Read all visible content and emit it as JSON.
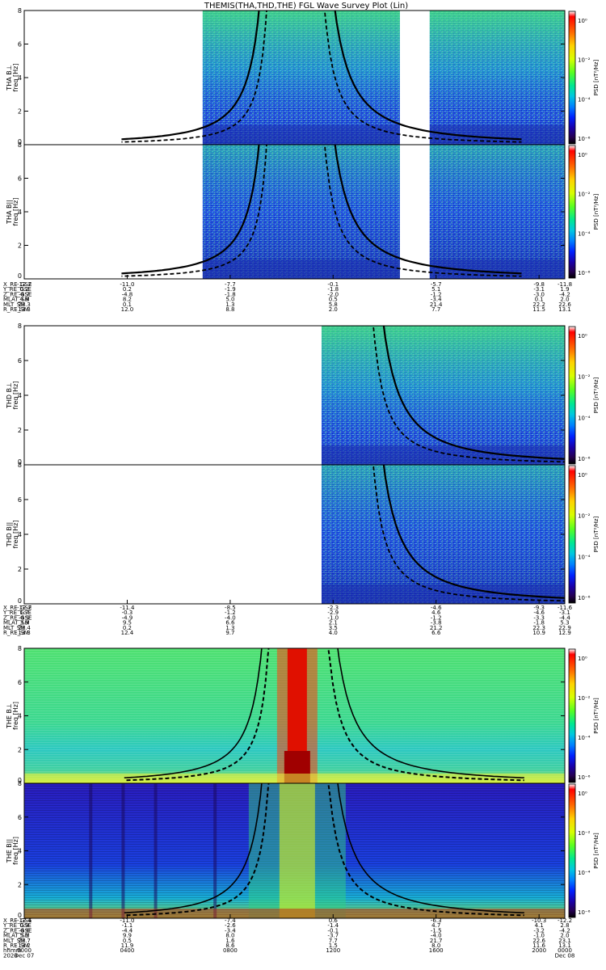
{
  "title": "THEMIS(THA,THD,THE) FGL Wave Survey Plot (Lin)",
  "colorbar": {
    "label": "PSD [nT²/Hz]",
    "ticks": [
      "10⁰",
      "10⁻²",
      "10⁻⁴",
      "10⁻⁶"
    ],
    "colors": [
      "#ffffff",
      "#ff0000",
      "#ff6a00",
      "#ffd200",
      "#d8ff00",
      "#5aff20",
      "#00e890",
      "#00c8e0",
      "#0080ff",
      "#0020ff",
      "#1a00a8",
      "#250050",
      "#000000"
    ]
  },
  "colors": {
    "panel_bg": "#1a48d8",
    "noise_light": "#5adc9c",
    "low_freq_band": "#1b2fb0",
    "curve": "#000000"
  },
  "chart_data": [
    {
      "type": "heatmap",
      "probe": "THA",
      "panels": [
        {
          "ylabel": "THA B⊥",
          "ylabel_units": "freq [Hz]",
          "yticks": [
            "0",
            "2",
            "4",
            "6",
            "8"
          ],
          "ylim": [
            0,
            8
          ]
        },
        {
          "ylabel": "THA B||",
          "ylabel_units": "freq [Hz]",
          "yticks": [
            "0",
            "2",
            "4",
            "6",
            "8"
          ],
          "ylim": [
            0,
            8
          ]
        }
      ],
      "data_gaps": [
        [
          0,
          0.33
        ],
        [
          0.695,
          0.75
        ]
      ],
      "ephemeris": {
        "labels": [
          "X_RE_GSE",
          "Y_RE_GSE",
          "Z_RE_GSE",
          "MLAT_SM",
          "MLT_SM",
          "R_RE_SM"
        ],
        "columns": [
          [
            "-12.2",
            "0.2",
            "-4.7",
            "4.8",
            "23.3",
            "13.3"
          ],
          [
            "-11.0",
            "0.2",
            "-4.8",
            "8.2",
            "0.1",
            "12.0"
          ],
          [
            "-7.7",
            "-1.9",
            "-1.8",
            "5.0",
            "1.3",
            "8.8"
          ],
          [
            "-0.1",
            "-1.8",
            "-2.0",
            "0.5",
            "5.8",
            "2.0"
          ],
          [
            "-5.7",
            "5.1",
            "-1.2",
            "-3.4",
            "21.4",
            "7.7"
          ],
          [
            "-9.8",
            "-3.1",
            "-3.0",
            "0.1",
            "22.2",
            "11.5"
          ],
          [
            "-11.8",
            "1.9",
            "-4.2",
            "2.0",
            "22.6",
            "13.1"
          ]
        ]
      }
    },
    {
      "type": "heatmap",
      "probe": "THD",
      "panels": [
        {
          "ylabel": "THD B⊥",
          "ylabel_units": "freq [Hz]",
          "yticks": [
            "0",
            "2",
            "4",
            "6",
            "8"
          ],
          "ylim": [
            0,
            8
          ]
        },
        {
          "ylabel": "THD B||",
          "ylabel_units": "freq [Hz]",
          "yticks": [
            "0",
            "2",
            "4",
            "6",
            "8"
          ],
          "ylim": [
            0,
            8
          ]
        }
      ],
      "data_gaps": [
        [
          0,
          0.55
        ]
      ],
      "ephemeris": {
        "labels": [
          "X_RE_GSE",
          "Y_RE_GSE",
          "Z_RE_GSE",
          "MLAT_SM",
          "MLT_SM",
          "R_RE_SM"
        ],
        "columns": [
          [
            "-12.2",
            "1.7",
            "-4.9",
            "3.9",
            "23.4",
            "13.3"
          ],
          [
            "-11.4",
            "-0.3",
            "-4.9",
            "9.5",
            "0.2",
            "12.4"
          ],
          [
            "-8.5",
            "-1.2",
            "-4.0",
            "6.6",
            "1.3",
            "9.7"
          ],
          [
            "-2.3",
            "-2.9",
            "-1.0",
            "2.1",
            "3.5",
            "4.0"
          ],
          [
            "-4.6",
            "4.6",
            "-1.2",
            "-3.8",
            "21.2",
            "6.6"
          ],
          [
            "-9.3",
            "-4.6",
            "-3.3",
            "-1.8",
            "22.3",
            "10.9"
          ],
          [
            "-11.6",
            "-3.1",
            "-4.4",
            "5.3",
            "22.9",
            "12.9"
          ]
        ]
      }
    },
    {
      "type": "heatmap",
      "probe": "THE",
      "panels": [
        {
          "ylabel": "THE B⊥",
          "ylabel_units": "freq [Hz]",
          "yticks": [
            "0",
            "2",
            "4",
            "6",
            "8"
          ],
          "ylim": [
            0,
            8
          ]
        },
        {
          "ylabel": "THE B||",
          "ylabel_units": "freq [Hz]",
          "yticks": [
            "0",
            "2",
            "4",
            "6",
            "8"
          ],
          "ylim": [
            0,
            8
          ]
        }
      ],
      "data_gaps": [],
      "ephemeris": {
        "labels": [
          "X_RE_GSE",
          "Y_RE_GSE",
          "Z_RE_GSE",
          "MLAT_SM",
          "MLT_SM",
          "R_RE_SM",
          "hhmm",
          "2024"
        ],
        "columns": [
          [
            "-12.4",
            "0.9",
            "-4.6",
            "5.1",
            "23.7",
            "13.2",
            "0000",
            "Dec 07"
          ],
          [
            "-11.0",
            "-1.1",
            "-4.4",
            "9.9",
            "0.5",
            "11.9",
            "0400",
            ""
          ],
          [
            "-7.4",
            "-2.6",
            "-3.4",
            "8.0",
            "1.6",
            "8.6",
            "0800",
            ""
          ],
          [
            "0.6",
            "-1.4",
            "-0.1",
            "-3.7",
            "7.7",
            "1.5",
            "1200",
            ""
          ],
          [
            "-6.3",
            "4.7",
            "-1.5",
            "-4.0",
            "21.7",
            "8.0",
            "1600",
            ""
          ],
          [
            "-10.3",
            "4.1",
            "-3.2",
            "-1.0",
            "22.6",
            "11.6",
            "2000",
            ""
          ],
          [
            "-12.2",
            "2.8",
            "-4.2",
            "2.0",
            "23.1",
            "13.1",
            "0000",
            "Dec 08"
          ]
        ]
      }
    }
  ]
}
